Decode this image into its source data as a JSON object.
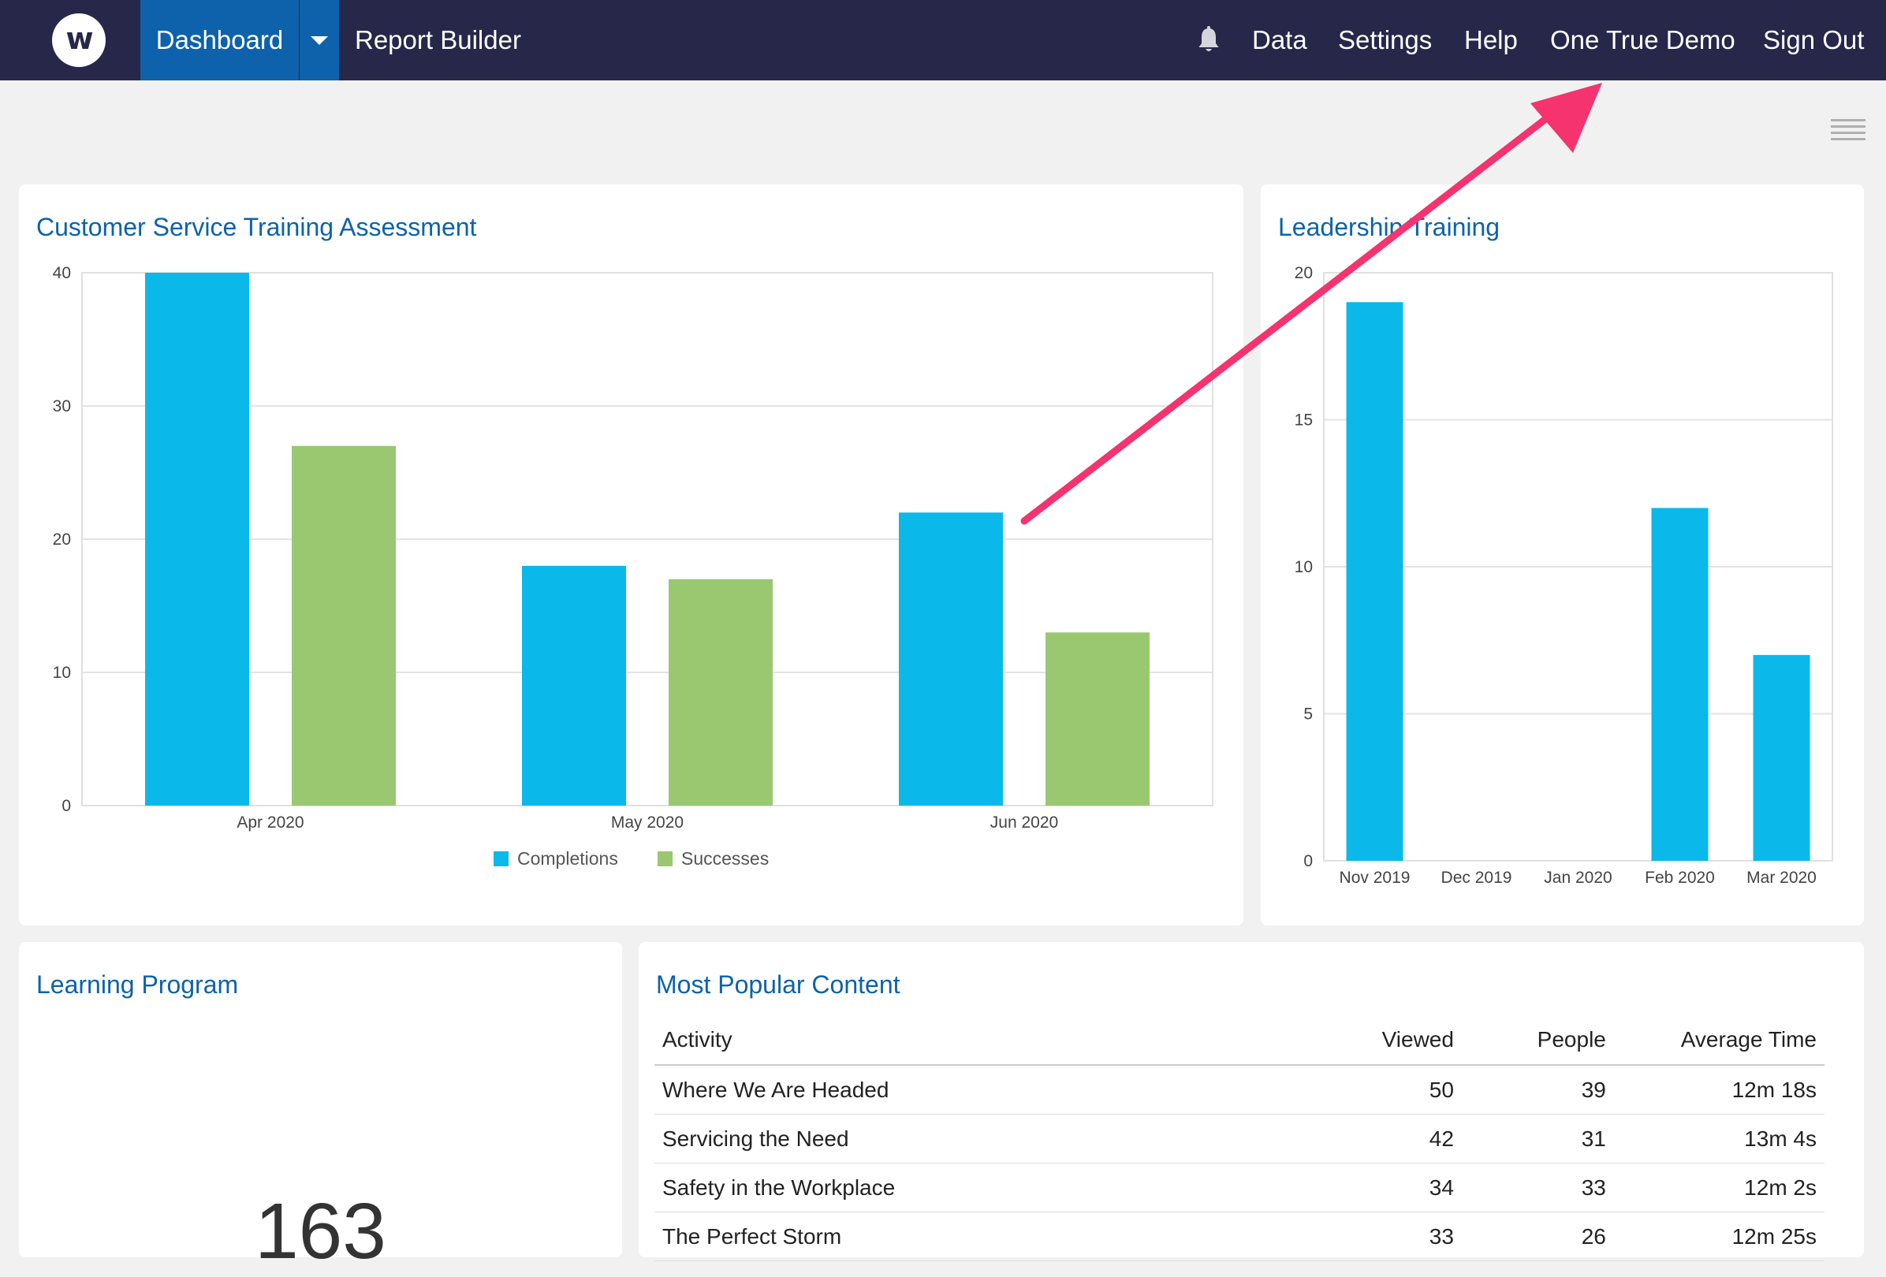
{
  "nav": {
    "logo": "w",
    "dashboard": "Dashboard",
    "report_builder": "Report Builder",
    "data": "Data",
    "settings": "Settings",
    "help": "Help",
    "account": "One True Demo",
    "sign_out": "Sign Out"
  },
  "colors": {
    "nav_bg": "#27274a",
    "accent": "#0d62ab",
    "completions": "#0ab9ea",
    "successes": "#99c871",
    "annotation_arrow": "#f5336f"
  },
  "customer_service": {
    "title": "Customer Service Training Assessment"
  },
  "leadership": {
    "title": "Leadership Training"
  },
  "learning_program": {
    "title": "Learning Program",
    "value": "163"
  },
  "popular": {
    "title": "Most Popular Content",
    "headers": [
      "Activity",
      "Viewed",
      "People",
      "Average Time"
    ],
    "rows": [
      [
        "Where We Are Headed",
        "50",
        "39",
        "12m 18s"
      ],
      [
        "Servicing the Need",
        "42",
        "31",
        "13m 4s"
      ],
      [
        "Safety in the Workplace",
        "34",
        "33",
        "12m 2s"
      ],
      [
        "The Perfect Storm",
        "33",
        "26",
        "12m 25s"
      ]
    ]
  },
  "chart_data": [
    {
      "type": "bar",
      "title": "Customer Service Training Assessment",
      "categories": [
        "Apr 2020",
        "May 2020",
        "Jun 2020"
      ],
      "series": [
        {
          "name": "Completions",
          "values": [
            40,
            18,
            22
          ]
        },
        {
          "name": "Successes",
          "values": [
            27,
            17,
            13
          ]
        }
      ],
      "ylim": [
        0,
        40
      ],
      "yticks": [
        0,
        10,
        20,
        30,
        40
      ],
      "grid": true,
      "legend": "bottom"
    },
    {
      "type": "bar",
      "title": "Leadership Training",
      "categories": [
        "Nov 2019",
        "Dec 2019",
        "Jan 2020",
        "Feb 2020",
        "Mar 2020"
      ],
      "values": [
        19,
        0,
        0,
        12,
        7
      ],
      "ylim": [
        0,
        20
      ],
      "yticks": [
        0,
        5,
        10,
        15,
        20
      ],
      "grid": true
    }
  ]
}
